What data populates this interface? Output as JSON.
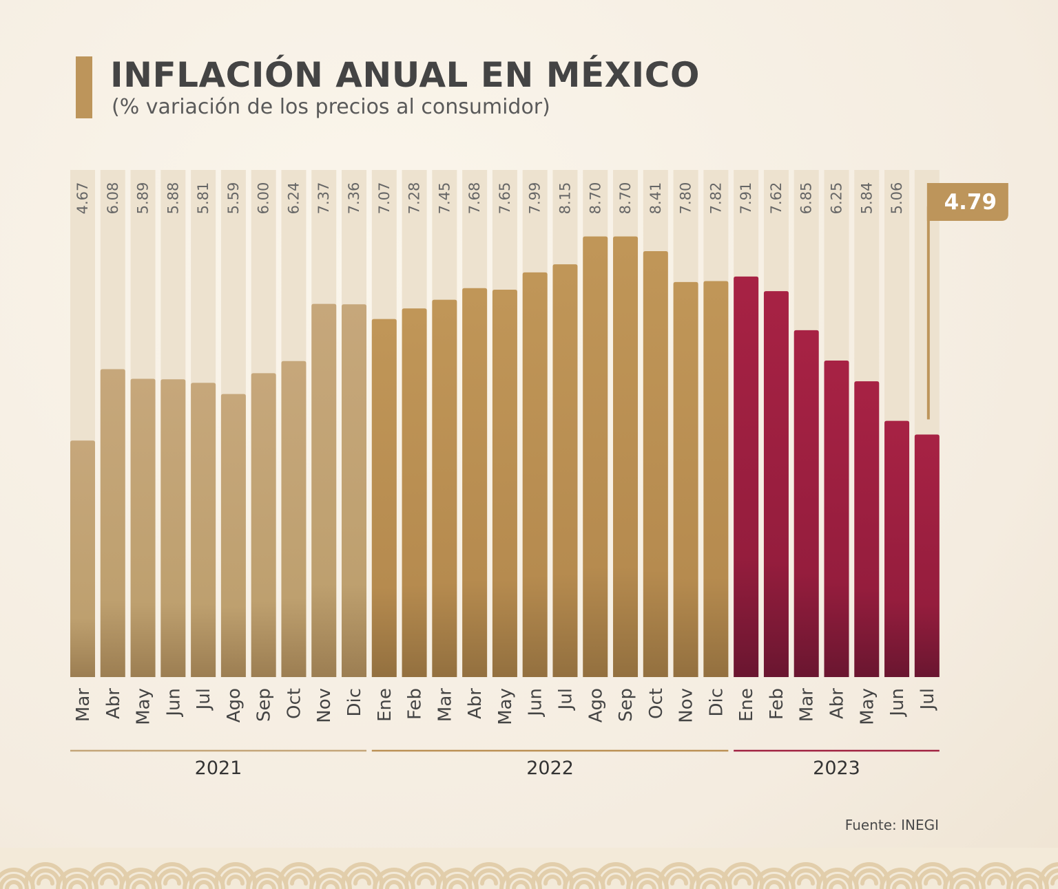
{
  "header": {
    "title": "INFLACIÓN ANUAL EN MÉXICO",
    "subtitle": "(% variación de los precios al consumidor)"
  },
  "source": "Fuente: INEGI",
  "colors": {
    "accent_gold": "#bd955b",
    "bar_2021": "#c4a578",
    "bar_2022": "#bb9054",
    "bar_2023": "#a02141",
    "column_bg": "#ede2cf",
    "value_text": "#666666",
    "month_text": "#444444"
  },
  "chart_data": {
    "type": "bar",
    "title": "INFLACIÓN ANUAL EN MÉXICO",
    "subtitle": "(% variación de los precios al consumidor)",
    "categories": [
      "Mar",
      "Abr",
      "May",
      "Jun",
      "Jul",
      "Ago",
      "Sep",
      "Oct",
      "Nov",
      "Dic",
      "Ene",
      "Feb",
      "Mar",
      "Abr",
      "May",
      "Jun",
      "Jul",
      "Ago",
      "Sep",
      "Oct",
      "Nov",
      "Dic",
      "Ene",
      "Feb",
      "Mar",
      "Abr",
      "May",
      "Jun",
      "Jul"
    ],
    "year_groups": [
      {
        "label": "2021",
        "start": 0,
        "end": 9,
        "color": "#c4a578"
      },
      {
        "label": "2022",
        "start": 10,
        "end": 21,
        "color": "#bb9054"
      },
      {
        "label": "2023",
        "start": 22,
        "end": 28,
        "color": "#a02141"
      }
    ],
    "values": [
      4.67,
      6.08,
      5.89,
      5.88,
      5.81,
      5.59,
      6.0,
      6.24,
      7.37,
      7.36,
      7.07,
      7.28,
      7.45,
      7.68,
      7.65,
      7.99,
      8.15,
      8.7,
      8.7,
      8.41,
      7.8,
      7.82,
      7.91,
      7.62,
      6.85,
      6.25,
      5.84,
      5.06,
      4.79
    ],
    "value_labels": [
      "4.67",
      "6.08",
      "5.89",
      "5.88",
      "5.81",
      "5.59",
      "6.00",
      "6.24",
      "7.37",
      "7.36",
      "7.07",
      "7.28",
      "7.45",
      "7.68",
      "7.65",
      "7.99",
      "8.15",
      "8.70",
      "8.70",
      "8.41",
      "7.80",
      "7.82",
      "7.91",
      "7.62",
      "6.85",
      "6.25",
      "5.84",
      "5.06",
      ""
    ],
    "highlight": {
      "index": 28,
      "label": "4.79"
    },
    "xlabel": "",
    "ylabel": ""
  }
}
